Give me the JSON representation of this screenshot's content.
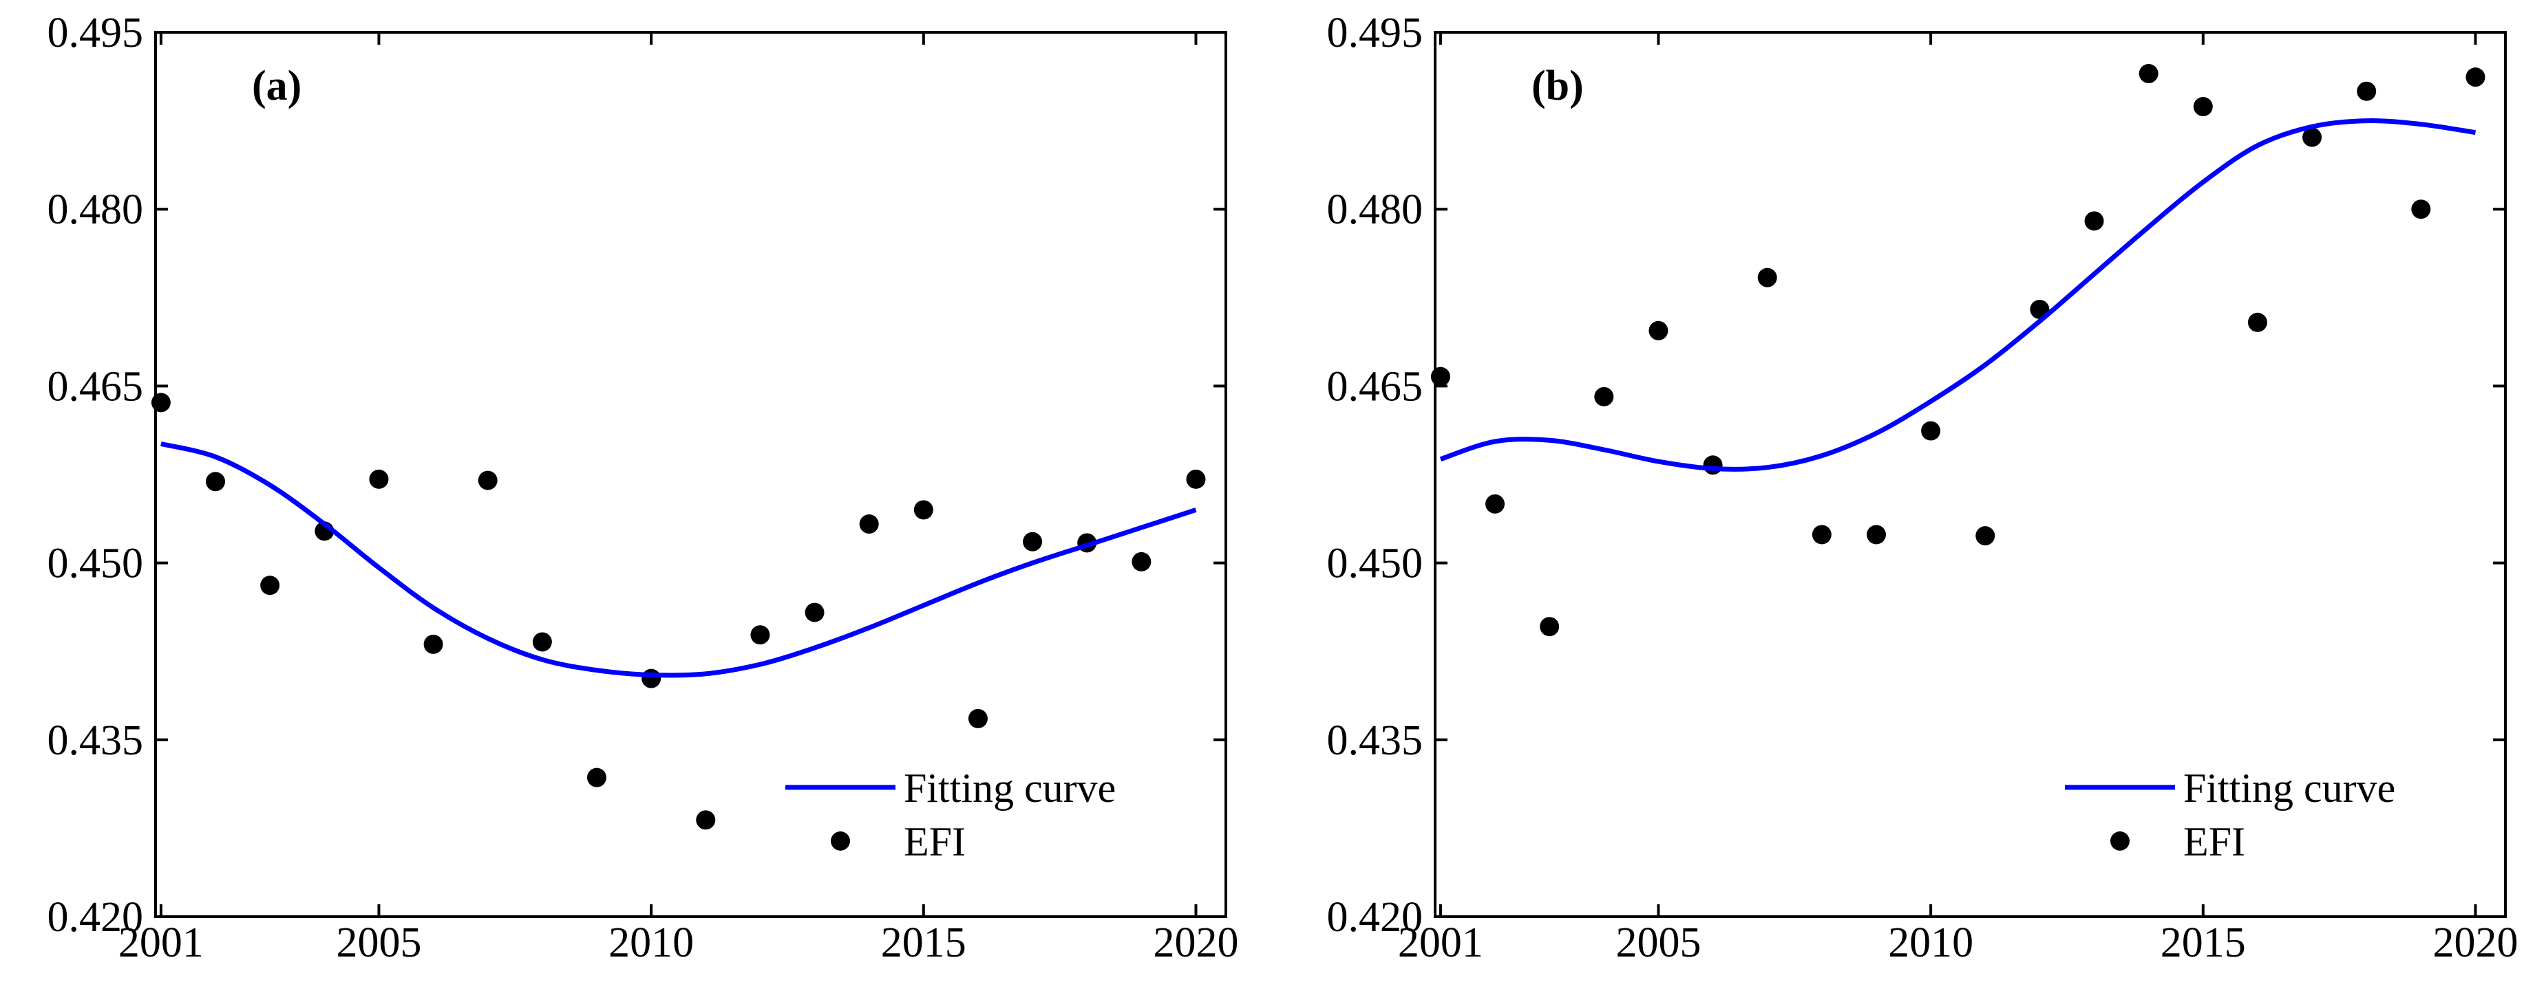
{
  "chart_data": [
    {
      "type": "scatter",
      "panel_label": "(a)",
      "x": [
        2001,
        2002,
        2003,
        2004,
        2005,
        2006,
        2007,
        2008,
        2009,
        2010,
        2011,
        2012,
        2013,
        2014,
        2015,
        2016,
        2017,
        2018,
        2019,
        2020
      ],
      "series": [
        {
          "name": "EFI",
          "kind": "points",
          "color": "#000000",
          "values": [
            0.4636,
            0.4569,
            0.4481,
            0.4527,
            0.4571,
            0.4431,
            0.457,
            0.4433,
            0.4318,
            0.4402,
            0.4282,
            0.4439,
            0.4458,
            0.4533,
            0.4545,
            0.4368,
            0.4518,
            0.4517,
            0.4501,
            0.4571
          ]
        },
        {
          "name": "Fitting curve",
          "kind": "line",
          "color": "#0000ff",
          "x": [
            2001,
            2002,
            2003,
            2004,
            2005,
            2006,
            2007,
            2008,
            2009,
            2010,
            2011,
            2012,
            2013,
            2014,
            2015,
            2016,
            2017,
            2018,
            2019,
            2020
          ],
          "values": [
            0.4601,
            0.459,
            0.4566,
            0.4533,
            0.4496,
            0.4462,
            0.4436,
            0.4418,
            0.4409,
            0.4405,
            0.4406,
            0.4414,
            0.4428,
            0.4445,
            0.4464,
            0.4483,
            0.45,
            0.4515,
            0.453,
            0.4545
          ]
        }
      ],
      "xlim": [
        2000.9,
        2020.55
      ],
      "ylim": [
        0.42,
        0.495
      ],
      "xticks": [
        2001,
        2005,
        2010,
        2015,
        2020
      ],
      "yticks": [
        "0.420",
        "0.435",
        "0.450",
        "0.465",
        "0.480",
        "0.495"
      ],
      "xlabel": "",
      "ylabel": "",
      "legend": {
        "position": "bottom-right",
        "entries": [
          "Fitting curve",
          "EFI"
        ]
      }
    },
    {
      "type": "scatter",
      "panel_label": "(b)",
      "x": [
        2001,
        2002,
        2003,
        2004,
        2005,
        2006,
        2007,
        2008,
        2009,
        2010,
        2011,
        2012,
        2013,
        2014,
        2015,
        2016,
        2017,
        2018,
        2019,
        2020
      ],
      "series": [
        {
          "name": "EFI",
          "kind": "points",
          "color": "#000000",
          "values": [
            0.4658,
            0.455,
            0.4446,
            0.4641,
            0.4697,
            0.4583,
            0.4742,
            0.4524,
            0.4524,
            0.4612,
            0.4523,
            0.4715,
            0.479,
            0.4915,
            0.4887,
            0.4704,
            0.4861,
            0.49,
            0.48,
            0.4912
          ]
        },
        {
          "name": "Fitting curve",
          "kind": "line",
          "color": "#0000ff",
          "x": [
            2001,
            2002,
            2003,
            2004,
            2005,
            2006,
            2007,
            2008,
            2009,
            2010,
            2011,
            2012,
            2013,
            2014,
            2015,
            2016,
            2017,
            2018,
            2019,
            2020
          ],
          "values": [
            0.4588,
            0.4603,
            0.4604,
            0.4596,
            0.4586,
            0.458,
            0.4581,
            0.4591,
            0.461,
            0.4637,
            0.4668,
            0.4705,
            0.4745,
            0.4785,
            0.4823,
            0.4854,
            0.487,
            0.4875,
            0.4872,
            0.4865
          ]
        }
      ],
      "xlim": [
        2000.9,
        2020.55
      ],
      "ylim": [
        0.42,
        0.495
      ],
      "xticks": [
        2001,
        2005,
        2010,
        2015,
        2020
      ],
      "yticks": [
        "0.420",
        "0.435",
        "0.450",
        "0.465",
        "0.480",
        "0.495"
      ],
      "xlabel": "",
      "ylabel": "",
      "legend": {
        "position": "bottom-right",
        "entries": [
          "Fitting curve",
          "EFI"
        ]
      }
    }
  ]
}
